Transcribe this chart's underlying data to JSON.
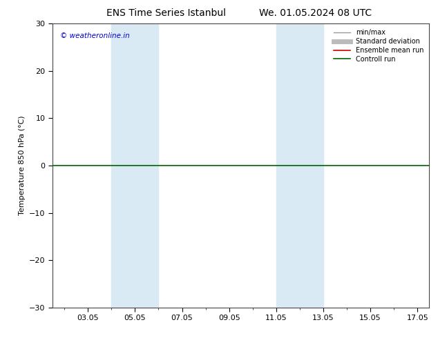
{
  "title_left": "ENS Time Series Istanbul",
  "title_right": "We. 01.05.2024 08 UTC",
  "ylabel": "Temperature 850 hPa (°C)",
  "ylim": [
    -30,
    30
  ],
  "yticks": [
    -30,
    -20,
    -10,
    0,
    10,
    20,
    30
  ],
  "xlim": [
    1.5,
    17.5
  ],
  "xtick_labels": [
    "03.05",
    "05.05",
    "07.05",
    "09.05",
    "11.05",
    "13.05",
    "15.05",
    "17.05"
  ],
  "xtick_positions": [
    3,
    5,
    7,
    9,
    11,
    13,
    15,
    17
  ],
  "shaded_bands": [
    {
      "xmin": 4.0,
      "xmax": 6.0,
      "color": "#daeaf5"
    },
    {
      "xmin": 11.0,
      "xmax": 13.0,
      "color": "#daeaf5"
    }
  ],
  "hline_y": 0,
  "hline_color": "#006400",
  "hline_lw": 1.2,
  "copyright_text": "© weatheronline.in",
  "copyright_color": "#0000dd",
  "legend_items": [
    {
      "label": "min/max",
      "color": "#999999",
      "lw": 1.0,
      "style": "-"
    },
    {
      "label": "Standard deviation",
      "color": "#bbbbbb",
      "lw": 5,
      "style": "-"
    },
    {
      "label": "Ensemble mean run",
      "color": "#cc0000",
      "lw": 1.2,
      "style": "-"
    },
    {
      "label": "Controll run",
      "color": "#006400",
      "lw": 1.2,
      "style": "-"
    }
  ],
  "bg_color": "#ffffff",
  "fig_width": 6.34,
  "fig_height": 4.9,
  "dpi": 100
}
